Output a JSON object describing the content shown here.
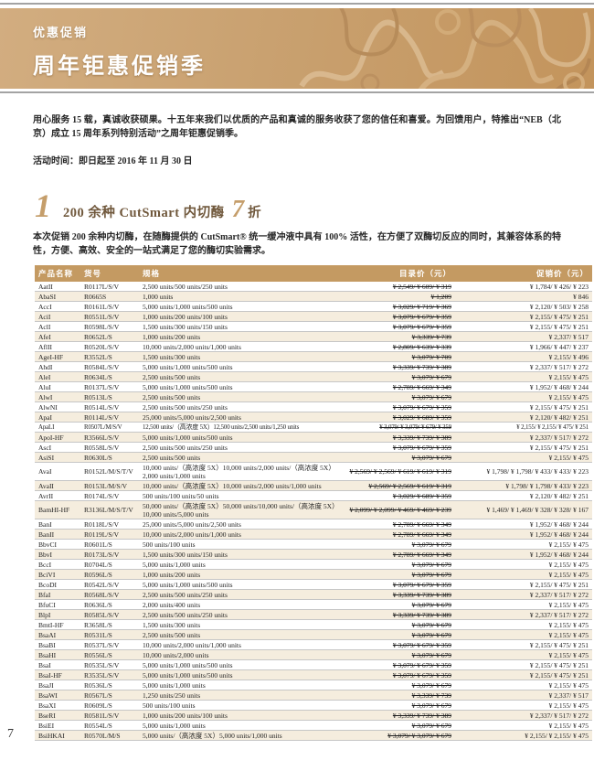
{
  "banner": {
    "eyebrow": "优惠促销",
    "title": "周年钜惠促销季"
  },
  "intro": {
    "p1": "用心服务 15 载，真诚收获硕果。十五年来我们以优质的产品和真诚的服务收获了您的信任和喜爱。为回馈用户，特推出“NEB（北京）成立 15 周年系列特别活动”之周年钜惠促销季。",
    "schedule": "活动时间：即日起至 2016 年 11 月 30 日"
  },
  "section": {
    "number": "1",
    "title": "200 余种 CutSmart 内切酶",
    "discount_number": "7",
    "discount_unit": "折",
    "description": "本次促销 200 余种内切酶，在随酶提供的 CutSmart® 统一缓冲液中具有 100% 活性，在方便了双酶切反应的同时，其兼容体系的特性，方便、高效、安全的一站式满足了您的酶切实验需求。"
  },
  "table": {
    "headers": [
      "产品名称",
      "货号",
      "规格",
      "目录价（元）",
      "促销价（元）"
    ],
    "rows": [
      {
        "name": "AatII",
        "sku": "R0117L/S/V",
        "spec": "2,500 units/500 units/250 units",
        "list": "¥ 2,549/ ¥ 609/ ¥ 319",
        "promo": "¥ 1,784/ ¥ 426/ ¥ 223"
      },
      {
        "name": "AbaSI",
        "sku": "R0665S",
        "spec": "1,000 units",
        "list": "¥ 1,209",
        "promo": "¥ 846"
      },
      {
        "name": "AccI",
        "sku": "R0161L/S/V",
        "spec": "5,000 units/1,000 units/500 units",
        "list": "¥ 3,029/ ¥ 719/ ¥ 369",
        "promo": "¥ 2,120/ ¥ 503/ ¥ 258"
      },
      {
        "name": "AciI",
        "sku": "R0551L/S/V",
        "spec": "1,000 units/200 units/100 units",
        "list": "¥ 3,079/ ¥ 679/ ¥ 359",
        "promo": "¥ 2,155/ ¥ 475/ ¥ 251"
      },
      {
        "name": "AclI",
        "sku": "R0598L/S/V",
        "spec": "1,500 units/300 units/150 units",
        "list": "¥ 3,079/ ¥ 679/ ¥ 359",
        "promo": "¥ 2,155/ ¥ 475/ ¥ 251"
      },
      {
        "name": "AfeI",
        "sku": "R0652L/S",
        "spec": "1,000 units/200 units",
        "list": "¥ 3,339/ ¥ 739",
        "promo": "¥ 2,337/ ¥ 517"
      },
      {
        "name": "AflII",
        "sku": "R0520L/S/V",
        "spec": "10,000 units/2,000 units/1,000 units",
        "list": "¥ 2,809/ ¥ 639/ ¥ 339",
        "promo": "¥ 1,966/ ¥ 447/ ¥ 237"
      },
      {
        "name": "AgeI-HF",
        "sku": "R3552L/S",
        "spec": "1,500 units/300 units",
        "list": "¥ 3,079/ ¥ 709",
        "promo": "¥ 2,155/ ¥ 496"
      },
      {
        "name": "AhdI",
        "sku": "R0584L/S/V",
        "spec": "5,000 units/1,000 units/500 units",
        "list": "¥ 3,339/ ¥ 739/ ¥ 389",
        "promo": "¥ 2,337/ ¥ 517/ ¥ 272"
      },
      {
        "name": "AleI",
        "sku": "R0634L/S",
        "spec": "2,500 units/500 units",
        "list": "¥ 3,079/ ¥ 679",
        "promo": "¥ 2,155/ ¥ 475"
      },
      {
        "name": "AluI",
        "sku": "R0137L/S/V",
        "spec": "5,000 units/1,000 units/500 units",
        "list": "¥ 2,789/ ¥ 669/ ¥ 349",
        "promo": "¥ 1,952/ ¥ 468/ ¥ 244"
      },
      {
        "name": "AlwI",
        "sku": "R0513L/S",
        "spec": "2,500 units/500 units",
        "list": "¥ 3,079/ ¥ 679",
        "promo": "¥ 2,155/ ¥ 475"
      },
      {
        "name": "AlwNI",
        "sku": "R0514L/S/V",
        "spec": "2,500 units/500 units/250 units",
        "list": "¥ 3,079/ ¥ 679/ ¥ 359",
        "promo": "¥ 2,155/ ¥ 475/ ¥ 251"
      },
      {
        "name": "ApaI",
        "sku": "R0114L/S/V",
        "spec": "25,000 units/5,000 units/2,500 units",
        "list": "¥ 3,029/ ¥ 689/ ¥ 359",
        "promo": "¥ 2,120/ ¥ 482/ ¥ 251"
      },
      {
        "name": "ApaLI",
        "sku": "R0507L/M/S/V",
        "spec": "12,500 units/（高浓度 5X）12,500 units/2,500 units/1,250 units",
        "list": "¥ 3,079/ ¥ 3,079/ ¥ 679/ ¥ 359",
        "promo": "¥ 2,155/ ¥ 2,155/ ¥ 475/ ¥ 251",
        "condensed": true
      },
      {
        "name": "ApoI-HF",
        "sku": "R3566L/S/V",
        "spec": "5,000 units/1,000 units/500 units",
        "list": "¥ 3,339/ ¥ 739/ ¥ 389",
        "promo": "¥ 2,337/ ¥ 517/ ¥ 272"
      },
      {
        "name": "AscI",
        "sku": "R0558L/S/V",
        "spec": "2,500 units/500 units/250 units",
        "list": "¥ 3,079/ ¥ 679/ ¥ 359",
        "promo": "¥ 2,155/ ¥ 475/ ¥ 251"
      },
      {
        "name": "AsiSI",
        "sku": "R0630L/S",
        "spec": "2,500 units/500 units",
        "list": "¥ 3,079/ ¥ 679",
        "promo": "¥ 2,155/ ¥ 475"
      },
      {
        "name": "AvaI",
        "sku": "R0152L/M/S/T/V",
        "spec": "10,000 units/（高浓度 5X）10,000 units/2,000 units/（高浓度 5X）2,000 units/1,000 units",
        "list": "¥ 2,569/ ¥ 2,569/ ¥ 619/ ¥ 619/ ¥ 319",
        "promo": "¥ 1,798/ ¥ 1,798/ ¥ 433/ ¥ 433/ ¥ 223"
      },
      {
        "name": "AvaII",
        "sku": "R0153L/M/S/V",
        "spec": "10,000 units/（高浓度 5X）10,000 units/2,000 units/1,000 units",
        "list": "¥ 2,569/ ¥ 2,569/ ¥ 619/ ¥ 319",
        "promo": "¥ 1,798/ ¥ 1,798/ ¥ 433/ ¥ 223"
      },
      {
        "name": "AvrII",
        "sku": "R0174L/S/V",
        "spec": "500 units/100 units/50 units",
        "list": "¥ 3,029/ ¥ 689/ ¥ 359",
        "promo": "¥ 2,120/ ¥ 482/ ¥ 251"
      },
      {
        "name": "BamHI-HF",
        "sku": "R3136L/M/S/T/V",
        "spec": "50,000 units/（高浓度 5X）50,000 units/10,000 units/（高浓度 5X）10,000 units/5,000 units",
        "list": "¥ 2,099/ ¥ 2,099/ ¥ 469/ ¥ 469/ ¥ 239",
        "promo": "¥ 1,469/ ¥ 1,469/ ¥ 328/ ¥ 328/ ¥ 167"
      },
      {
        "name": "BanI",
        "sku": "R0118L/S/V",
        "spec": "25,000 units/5,000 units/2,500 units",
        "list": "¥ 2,789/ ¥ 669/ ¥ 349",
        "promo": "¥ 1,952/ ¥ 468/ ¥ 244"
      },
      {
        "name": "BanII",
        "sku": "R0119L/S/V",
        "spec": "10,000 units/2,000 units/1,000 units",
        "list": "¥ 2,789/ ¥ 669/ ¥ 349",
        "promo": "¥ 1,952/ ¥ 468/ ¥ 244"
      },
      {
        "name": "BbvCI",
        "sku": "R0601L/S",
        "spec": "500 units/100 units",
        "list": "¥ 3,079/ ¥ 679",
        "promo": "¥ 2,155/ ¥ 475"
      },
      {
        "name": "BbvI",
        "sku": "R0173L/S/V",
        "spec": "1,500 units/300 units/150 units",
        "list": "¥ 2,789/ ¥ 669/ ¥ 349",
        "promo": "¥ 1,952/ ¥ 468/ ¥ 244"
      },
      {
        "name": "BccI",
        "sku": "R0704L/S",
        "spec": "5,000 units/1,000 units",
        "list": "¥ 3,079/ ¥ 679",
        "promo": "¥ 2,155/ ¥ 475"
      },
      {
        "name": "BciVI",
        "sku": "R0596L/S",
        "spec": "1,000 units/200 units",
        "list": "¥ 3,079/ ¥ 679",
        "promo": "¥ 2,155/ ¥ 475"
      },
      {
        "name": "BcoDI",
        "sku": "R0542L/S/V",
        "spec": "5,000 units/1,000 units/500 units",
        "list": "¥ 3,079/ ¥ 679/ ¥ 359",
        "promo": "¥ 2,155/ ¥ 475/ ¥ 251"
      },
      {
        "name": "BfaI",
        "sku": "R0568L/S/V",
        "spec": "2,500 units/500 units/250 units",
        "list": "¥ 3,339/ ¥ 739/ ¥ 389",
        "promo": "¥ 2,337/ ¥ 517/ ¥ 272"
      },
      {
        "name": "BfuCI",
        "sku": "R0636L/S",
        "spec": "2,000 units/400 units",
        "list": "¥ 3,079/ ¥ 679",
        "promo": "¥ 2,155/ ¥ 475"
      },
      {
        "name": "BlpI",
        "sku": "R0585L/S/V",
        "spec": "2,500 units/500 units/250 units",
        "list": "¥ 3,339/ ¥ 739/ ¥ 389",
        "promo": "¥ 2,337/ ¥ 517/ ¥ 272"
      },
      {
        "name": "BmtI-HF",
        "sku": "R3658L/S",
        "spec": "1,500 units/300 units",
        "list": "¥ 3,079/ ¥ 679",
        "promo": "¥ 2,155/ ¥ 475"
      },
      {
        "name": "BsaAI",
        "sku": "R0531L/S",
        "spec": "2,500 units/500 units",
        "list": "¥ 3,079/ ¥ 679",
        "promo": "¥ 2,155/ ¥ 475"
      },
      {
        "name": "BsaBI",
        "sku": "R0537L/S/V",
        "spec": "10,000 units/2,000 units/1,000 units",
        "list": "¥ 3,079/ ¥ 679/ ¥ 359",
        "promo": "¥ 2,155/ ¥ 475/ ¥ 251"
      },
      {
        "name": "BsaHI",
        "sku": "R0556L/S",
        "spec": "10,000 units/2,000 units",
        "list": "¥ 3,079/ ¥ 679",
        "promo": "¥ 2,155/ ¥ 475"
      },
      {
        "name": "BsaI",
        "sku": "R0535L/S/V",
        "spec": "5,000 units/1,000 units/500 units",
        "list": "¥ 3,079/ ¥ 679/ ¥ 359",
        "promo": "¥ 2,155/ ¥ 475/ ¥ 251"
      },
      {
        "name": "BsaI-HF",
        "sku": "R3535L/S/V",
        "spec": "5,000 units/1,000 units/500 units",
        "list": "¥ 3,079/ ¥ 679/ ¥ 359",
        "promo": "¥ 2,155/ ¥ 475/ ¥ 251"
      },
      {
        "name": "BsaJI",
        "sku": "R0536L/S",
        "spec": "5,000 units/1,000 units",
        "list": "¥ 3,079/ ¥ 679",
        "promo": "¥ 2,155/ ¥ 475"
      },
      {
        "name": "BsaWI",
        "sku": "R0567L/S",
        "spec": "1,250 units/250 units",
        "list": "¥ 3,339/ ¥ 739",
        "promo": "¥ 2,337/ ¥ 517"
      },
      {
        "name": "BsaXI",
        "sku": "R0609L/S",
        "spec": "500 units/100 units",
        "list": "¥ 3,079/ ¥ 679",
        "promo": "¥ 2,155/ ¥ 475"
      },
      {
        "name": "BseRI",
        "sku": "R0581L/S/V",
        "spec": "1,000 units/200 units/100 units",
        "list": "¥ 3,339/ ¥ 739/ ¥ 389",
        "promo": "¥ 2,337/ ¥ 517/ ¥ 272"
      },
      {
        "name": "BsiEI",
        "sku": "R0554L/S",
        "spec": "5,000 units/1,000 units",
        "list": "¥ 3,079/ ¥ 679",
        "promo": "¥ 2,155/ ¥ 475"
      },
      {
        "name": "BsiHKAI",
        "sku": "R0570L/M/S",
        "spec": "5,000 units/（高浓度 5X）5,000 units/1,000 units",
        "list": "¥ 3,079/ ¥ 3,079/ ¥ 679",
        "promo": "¥ 2,155/ ¥ 2,155/ ¥ 475"
      }
    ]
  },
  "footer": {
    "page_number": "7"
  },
  "colors": {
    "banner_tan_light": "#d2ad80",
    "banner_tan_dark": "#c3945c",
    "table_header_bg": "#c49a62",
    "row_alt_bg": "#f5edde",
    "accent_gold": "#c59e6b",
    "heading_brown": "#70583c",
    "rule_gray": "#a3a3a3"
  }
}
